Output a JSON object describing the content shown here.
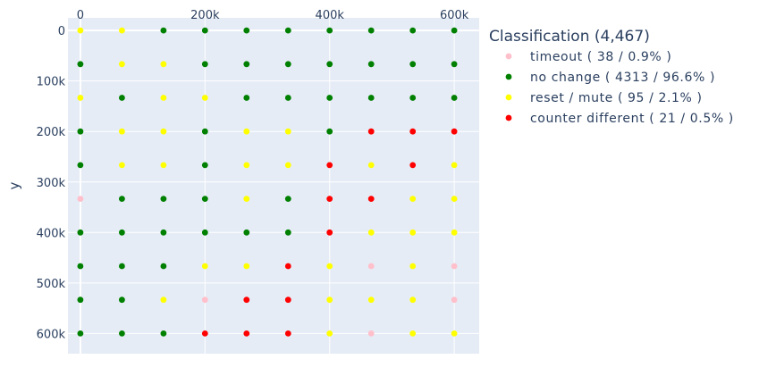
{
  "chart_data": {
    "type": "scatter",
    "title": "",
    "xlabel": "",
    "ylabel": "y",
    "xlim": [
      -20000,
      640000
    ],
    "ylim": [
      640000,
      -25000
    ],
    "x_ticks": [
      0,
      200000,
      400000,
      600000
    ],
    "x_tick_labels": [
      "0",
      "200k",
      "400k",
      "600k"
    ],
    "y_ticks": [
      0,
      100000,
      200000,
      300000,
      400000,
      500000,
      600000
    ],
    "y_tick_labels": [
      "0",
      "100k",
      "200k",
      "300k",
      "400k",
      "500k",
      "600k"
    ],
    "grid": true,
    "x_axis_position": "top",
    "y_axis_reversed": true,
    "legend_placement": "right",
    "legend_title": "Classification (4,467)",
    "series": [
      {
        "name": "timeout ( 38 / 0.9% )",
        "color": "#ffc0cb",
        "points": [
          [
            0,
            333333
          ],
          [
            200000,
            533333
          ],
          [
            466667,
            466667
          ],
          [
            600000,
            466667
          ],
          [
            600000,
            533333
          ],
          [
            466667,
            600000
          ]
        ]
      },
      {
        "name": "no change ( 4313 / 96.6% )",
        "color": "#008000",
        "points": [
          [
            133333,
            0
          ],
          [
            200000,
            0
          ],
          [
            266667,
            0
          ],
          [
            333333,
            0
          ],
          [
            400000,
            0
          ],
          [
            466667,
            0
          ],
          [
            533333,
            0
          ],
          [
            600000,
            0
          ],
          [
            0,
            66667
          ],
          [
            200000,
            66667
          ],
          [
            266667,
            66667
          ],
          [
            333333,
            66667
          ],
          [
            400000,
            66667
          ],
          [
            466667,
            66667
          ],
          [
            533333,
            66667
          ],
          [
            600000,
            66667
          ],
          [
            66667,
            133333
          ],
          [
            266667,
            133333
          ],
          [
            333333,
            133333
          ],
          [
            400000,
            133333
          ],
          [
            466667,
            133333
          ],
          [
            533333,
            133333
          ],
          [
            600000,
            133333
          ],
          [
            0,
            200000
          ],
          [
            200000,
            200000
          ],
          [
            400000,
            200000
          ],
          [
            0,
            266667
          ],
          [
            200000,
            266667
          ],
          [
            66667,
            333333
          ],
          [
            133333,
            333333
          ],
          [
            200000,
            333333
          ],
          [
            333333,
            333333
          ],
          [
            0,
            400000
          ],
          [
            66667,
            400000
          ],
          [
            133333,
            400000
          ],
          [
            200000,
            400000
          ],
          [
            266667,
            400000
          ],
          [
            333333,
            400000
          ],
          [
            0,
            466667
          ],
          [
            66667,
            466667
          ],
          [
            133333,
            466667
          ],
          [
            0,
            533333
          ],
          [
            66667,
            533333
          ],
          [
            0,
            600000
          ],
          [
            66667,
            600000
          ],
          [
            133333,
            600000
          ]
        ]
      },
      {
        "name": "reset / mute ( 95 / 2.1% )",
        "color": "#ffff00",
        "points": [
          [
            0,
            0
          ],
          [
            66667,
            0
          ],
          [
            66667,
            66667
          ],
          [
            133333,
            66667
          ],
          [
            0,
            133333
          ],
          [
            133333,
            133333
          ],
          [
            200000,
            133333
          ],
          [
            66667,
            200000
          ],
          [
            133333,
            200000
          ],
          [
            266667,
            200000
          ],
          [
            333333,
            200000
          ],
          [
            66667,
            266667
          ],
          [
            133333,
            266667
          ],
          [
            266667,
            266667
          ],
          [
            333333,
            266667
          ],
          [
            466667,
            266667
          ],
          [
            600000,
            266667
          ],
          [
            266667,
            333333
          ],
          [
            533333,
            333333
          ],
          [
            600000,
            333333
          ],
          [
            466667,
            400000
          ],
          [
            533333,
            400000
          ],
          [
            600000,
            400000
          ],
          [
            200000,
            466667
          ],
          [
            266667,
            466667
          ],
          [
            400000,
            466667
          ],
          [
            533333,
            466667
          ],
          [
            133333,
            533333
          ],
          [
            400000,
            533333
          ],
          [
            466667,
            533333
          ],
          [
            533333,
            533333
          ],
          [
            400000,
            600000
          ],
          [
            533333,
            600000
          ],
          [
            600000,
            600000
          ]
        ]
      },
      {
        "name": "counter different ( 21 / 0.5% )",
        "color": "#ff0000",
        "points": [
          [
            466667,
            200000
          ],
          [
            533333,
            200000
          ],
          [
            600000,
            200000
          ],
          [
            400000,
            266667
          ],
          [
            533333,
            266667
          ],
          [
            400000,
            333333
          ],
          [
            466667,
            333333
          ],
          [
            400000,
            400000
          ],
          [
            333333,
            466667
          ],
          [
            266667,
            533333
          ],
          [
            333333,
            533333
          ],
          [
            200000,
            600000
          ],
          [
            266667,
            600000
          ],
          [
            333333,
            600000
          ]
        ]
      }
    ]
  }
}
